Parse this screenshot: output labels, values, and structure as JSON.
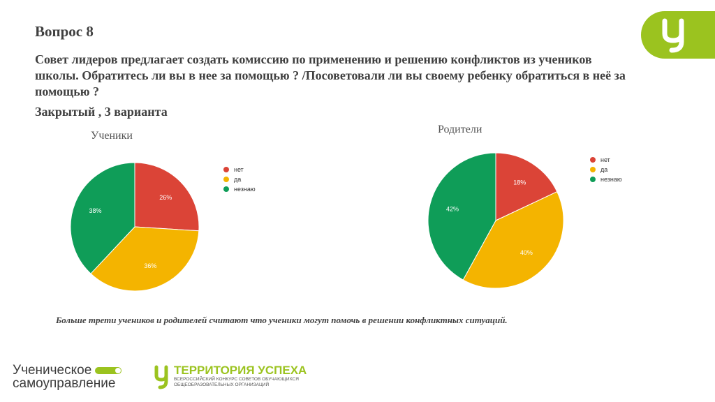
{
  "slide": {
    "title": "Вопрос 8",
    "question": "Совет лидеров предлагает создать комиссию по применению и решению конфликтов из учеников школы.  Обратитесь ли вы в нее за помощью ? /Посоветовали ли вы своему ребенку обратиться в неё за помощью ?",
    "question_type": "Закрытый , 3 варианта",
    "conclusion": "Больше трети  учеников  и родителей считают что ученики могут помочь в решении конфликтных ситуаций."
  },
  "logos": {
    "corner": "у-logo-icon",
    "left_line1": "Ученическое",
    "left_line2": "самоуправление",
    "right_main": "ТЕРРИТОРИЯ УСПЕХА",
    "right_sub1": "ВСЕРОССИЙСКИЙ КОНКУРС СОВЕТОВ ОБУЧАЮЩИХСЯ",
    "right_sub2": "ОБЩЕОБРАЗОВАТЕЛЬНЫХ ОРГАНИЗАЦИЙ",
    "brand_color": "#9bc31f"
  },
  "chart_data": [
    {
      "type": "pie",
      "title": "Ученики",
      "categories": [
        "нет",
        "да",
        "незнаю"
      ],
      "values": [
        26,
        36,
        38
      ],
      "labels": [
        "26%",
        "36%",
        "38%"
      ],
      "colors": [
        "#db4437",
        "#f4b400",
        "#0f9d58"
      ],
      "legend": "right"
    },
    {
      "type": "pie",
      "title": "Родители",
      "categories": [
        "нет",
        "да",
        "незнаю"
      ],
      "values": [
        18,
        40,
        42
      ],
      "labels": [
        "18%",
        "40%",
        "42%"
      ],
      "colors": [
        "#db4437",
        "#f4b400",
        "#0f9d58"
      ],
      "legend": "right"
    }
  ]
}
